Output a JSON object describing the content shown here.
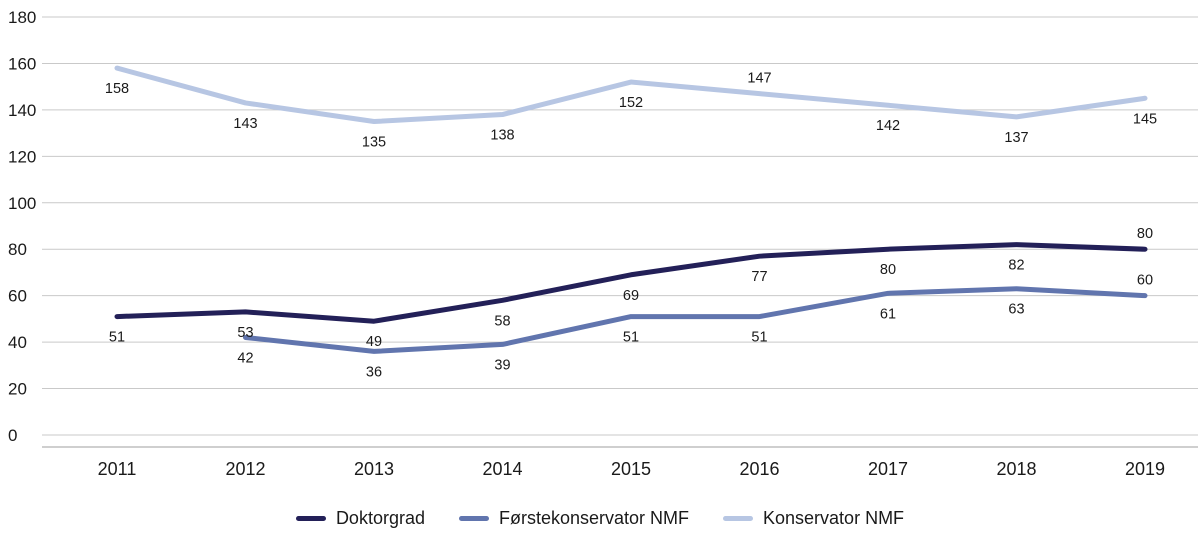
{
  "chart_data": {
    "type": "line",
    "categories": [
      "2011",
      "2012",
      "2013",
      "2014",
      "2015",
      "2016",
      "2017",
      "2018",
      "2019"
    ],
    "series": [
      {
        "name": "Konservator NMF",
        "color": "#b7c6e3",
        "values": [
          158,
          143,
          135,
          138,
          152,
          147,
          142,
          137,
          145
        ],
        "label_positions": [
          "below",
          "below",
          "below",
          "below",
          "below",
          "above",
          "below",
          "below",
          "below"
        ]
      },
      {
        "name": "Førstekonservator NMF",
        "color": "#6175ae",
        "values": [
          null,
          42,
          36,
          39,
          51,
          51,
          61,
          63,
          60
        ],
        "label_positions": [
          "below",
          "below",
          "below",
          "below",
          "below",
          "below",
          "below",
          "below",
          "above"
        ]
      },
      {
        "name": "Doktorgrad",
        "color": "#232058",
        "values": [
          51,
          53,
          49,
          58,
          69,
          77,
          80,
          82,
          80
        ],
        "label_positions": [
          "below",
          "below",
          "below",
          "below",
          "below",
          "below",
          "below",
          "below",
          "above"
        ]
      }
    ],
    "legend_order": [
      "Doktorgrad",
      "Førstekonservator NMF",
      "Konservator NMF"
    ],
    "title": "",
    "xlabel": "",
    "ylabel": "",
    "ylim": [
      0,
      180
    ],
    "ytick_step": 20,
    "grid": true,
    "legend_position": "bottom"
  },
  "style": {
    "grid_color": "#c9c9c9",
    "axis_color": "#9f9f9f",
    "text_color": "#1a1a1a",
    "line_width": 5
  }
}
